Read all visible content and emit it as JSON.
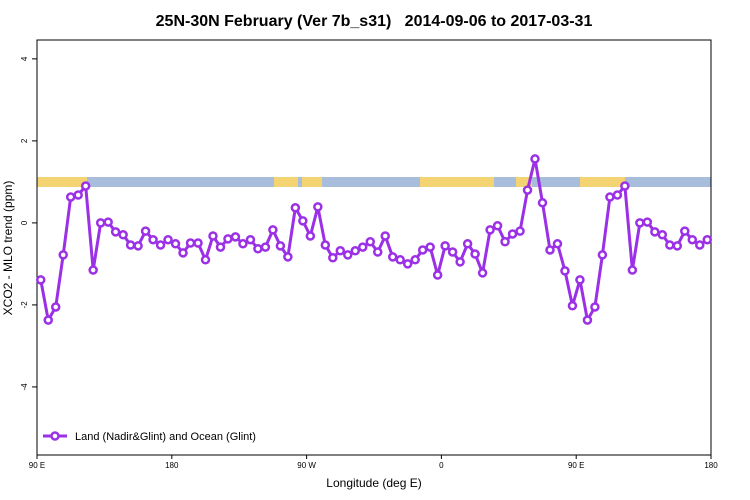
{
  "chart_data": {
    "type": "line",
    "title": "25N-30N February (Ver 7b_s31)   2014-09-06 to 2017-03-31",
    "x_label": "Longitude (deg E)",
    "y_label": "XCO2 - MLO trend (ppm)",
    "x": [
      92.5,
      97.5,
      102.5,
      107.5,
      112.5,
      117.5,
      122.5,
      127.5,
      132.5,
      137.5,
      142.5,
      147.5,
      152.5,
      157.5,
      162.5,
      167.5,
      172.5,
      177.5,
      182.5,
      187.5,
      192.5,
      197.5,
      202.5,
      207.5,
      212.5,
      217.5,
      222.5,
      227.5,
      232.5,
      237.5,
      242.5,
      247.5,
      252.5,
      257.5,
      262.5,
      267.5,
      272.5,
      277.5,
      282.5,
      287.5,
      292.5,
      297.5,
      302.5,
      307.5,
      312.5,
      317.5,
      322.5,
      327.5,
      332.5,
      337.5,
      342.5,
      347.5,
      352.5,
      357.5,
      362.5,
      367.5,
      372.5,
      377.5,
      382.5,
      387.5,
      392.5,
      397.5,
      402.5,
      407.5,
      412.5,
      417.5,
      422.5,
      427.5,
      432.5,
      437.5,
      442.5,
      447.5,
      452.5,
      457.5,
      462.5,
      467.5,
      472.5,
      477.5,
      482.5,
      487.5,
      492.5,
      497.5,
      502.5,
      507.5,
      512.5,
      517.5,
      522.5,
      527.5,
      532.5,
      537.5
    ],
    "series": [
      {
        "name": "Land (Nadir&Glint) and Ocean (Glint)",
        "color": "#9b30e6",
        "values": [
          -1.39,
          -2.37,
          -2.05,
          -0.78,
          0.63,
          0.68,
          0.9,
          -1.15,
          0.0,
          0.02,
          -0.22,
          -0.29,
          -0.54,
          -0.56,
          -0.2,
          -0.41,
          -0.54,
          -0.41,
          -0.51,
          -0.73,
          -0.49,
          -0.49,
          -0.9,
          -0.32,
          -0.59,
          -0.39,
          -0.34,
          -0.51,
          -0.41,
          -0.63,
          -0.59,
          -0.17,
          -0.56,
          -0.83,
          0.37,
          0.05,
          -0.32,
          0.39,
          -0.54,
          -0.85,
          -0.68,
          -0.78,
          -0.68,
          -0.59,
          -0.46,
          -0.71,
          -0.32,
          -0.83,
          -0.9,
          -1.0,
          -0.9,
          -0.66,
          -0.59,
          -1.27,
          -0.56,
          -0.71,
          -0.95,
          -0.51,
          -0.76,
          -1.22,
          -0.17,
          -0.07,
          -0.46,
          -0.27,
          -0.2,
          0.8,
          1.56,
          0.49,
          -0.66,
          -0.51,
          -1.17,
          -2.02,
          -1.39,
          -2.37,
          -2.05,
          -0.78,
          0.63,
          0.68,
          0.9,
          -1.15,
          0.0,
          0.02,
          -0.22,
          -0.29,
          -0.54,
          -0.56,
          -0.2,
          -0.41,
          -0.54,
          -0.41
        ]
      }
    ],
    "xlim": [
      90,
      540
    ],
    "xticks": [
      {
        "value": 90,
        "label": "90 E"
      },
      180,
      {
        "value": 270,
        "label": "90 W"
      },
      {
        "value": 360,
        "label": "0"
      },
      {
        "value": 450,
        "label": "90 E"
      },
      {
        "value": 540,
        "label": "180"
      }
    ],
    "ylim": [
      -5.66,
      4.46
    ],
    "yticks": [
      -4,
      -2,
      0,
      2,
      4
    ],
    "grid": false,
    "legend": "bottom-left"
  }
}
